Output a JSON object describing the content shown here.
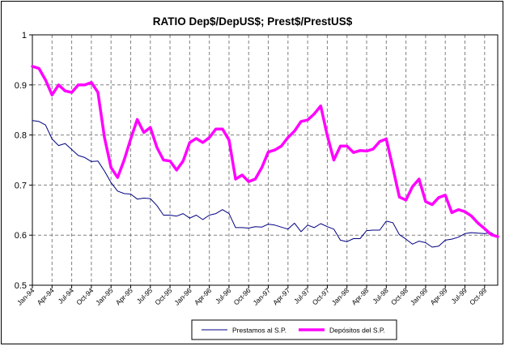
{
  "chart_data": {
    "type": "line",
    "title": "RATIO Dep$/DepUS$; Prest$/PrestUS$",
    "xlabel": "",
    "ylabel": "",
    "ylim": [
      0.5,
      1.0
    ],
    "yticks": [
      "0.5",
      "0.6",
      "0.7",
      "0.8",
      "0.9",
      "1"
    ],
    "grid": "dashed-both",
    "legend_position": "bottom",
    "x_tick_labels": [
      "Jan-94",
      "Apr-94",
      "Jul-94",
      "Oct-94",
      "Jan-95",
      "Apr-95",
      "Jul-95",
      "Oct-95",
      "Jan-96",
      "Apr-96",
      "Jul-96",
      "Oct-96",
      "Jan-97",
      "Apr-97",
      "Jul-97",
      "Oct-97",
      "Jan-98",
      "Apr-98",
      "Jul-98",
      "Oct-98",
      "Jan-99",
      "Apr-99",
      "Jul-99",
      "Oct-99"
    ],
    "x": [
      "Jan-94",
      "Feb-94",
      "Mar-94",
      "Apr-94",
      "May-94",
      "Jun-94",
      "Jul-94",
      "Aug-94",
      "Sep-94",
      "Oct-94",
      "Nov-94",
      "Dec-94",
      "Jan-95",
      "Feb-95",
      "Mar-95",
      "Apr-95",
      "May-95",
      "Jun-95",
      "Jul-95",
      "Aug-95",
      "Sep-95",
      "Oct-95",
      "Nov-95",
      "Dec-95",
      "Jan-96",
      "Feb-96",
      "Mar-96",
      "Apr-96",
      "May-96",
      "Jun-96",
      "Jul-96",
      "Aug-96",
      "Sep-96",
      "Oct-96",
      "Nov-96",
      "Dec-96",
      "Jan-97",
      "Feb-97",
      "Mar-97",
      "Apr-97",
      "May-97",
      "Jun-97",
      "Jul-97",
      "Aug-97",
      "Sep-97",
      "Oct-97",
      "Nov-97",
      "Dec-97",
      "Jan-98",
      "Feb-98",
      "Mar-98",
      "Apr-98",
      "May-98",
      "Jun-98",
      "Jul-98",
      "Aug-98",
      "Sep-98",
      "Oct-98",
      "Nov-98",
      "Dec-98",
      "Jan-99",
      "Feb-99",
      "Mar-99",
      "Apr-99",
      "May-99",
      "Jun-99",
      "Jul-99",
      "Aug-99",
      "Sep-99",
      "Oct-99",
      "Nov-99",
      "Dec-99"
    ],
    "series": [
      {
        "name": "Prestamos al S.P.",
        "color": "#000080",
        "values": [
          0.829,
          0.827,
          0.82,
          0.792,
          0.779,
          0.783,
          0.771,
          0.759,
          0.755,
          0.747,
          0.748,
          0.728,
          0.705,
          0.688,
          0.683,
          0.682,
          0.672,
          0.674,
          0.673,
          0.659,
          0.64,
          0.64,
          0.638,
          0.643,
          0.634,
          0.64,
          0.631,
          0.64,
          0.643,
          0.651,
          0.643,
          0.615,
          0.615,
          0.614,
          0.617,
          0.616,
          0.622,
          0.62,
          0.616,
          0.612,
          0.624,
          0.607,
          0.62,
          0.615,
          0.623,
          0.617,
          0.612,
          0.59,
          0.587,
          0.593,
          0.593,
          0.609,
          0.61,
          0.61,
          0.628,
          0.625,
          0.601,
          0.592,
          0.582,
          0.588,
          0.585,
          0.576,
          0.578,
          0.59,
          0.592,
          0.596,
          0.603,
          0.605,
          0.604,
          0.603,
          0.605,
          0.596
        ]
      },
      {
        "name": "Depósitos del S.P.",
        "color": "#ff00ff",
        "values": [
          0.937,
          0.933,
          0.91,
          0.88,
          0.9,
          0.888,
          0.885,
          0.9,
          0.9,
          0.905,
          0.885,
          0.795,
          0.735,
          0.715,
          0.75,
          0.792,
          0.831,
          0.805,
          0.815,
          0.775,
          0.75,
          0.748,
          0.73,
          0.748,
          0.785,
          0.793,
          0.785,
          0.795,
          0.812,
          0.812,
          0.79,
          0.712,
          0.72,
          0.707,
          0.712,
          0.735,
          0.766,
          0.77,
          0.778,
          0.795,
          0.808,
          0.827,
          0.83,
          0.842,
          0.858,
          0.799,
          0.75,
          0.778,
          0.778,
          0.765,
          0.769,
          0.768,
          0.772,
          0.787,
          0.792,
          0.735,
          0.676,
          0.67,
          0.697,
          0.712,
          0.667,
          0.661,
          0.675,
          0.68,
          0.645,
          0.651,
          0.647,
          0.638,
          0.624,
          0.613,
          0.601,
          0.597
        ]
      }
    ]
  }
}
